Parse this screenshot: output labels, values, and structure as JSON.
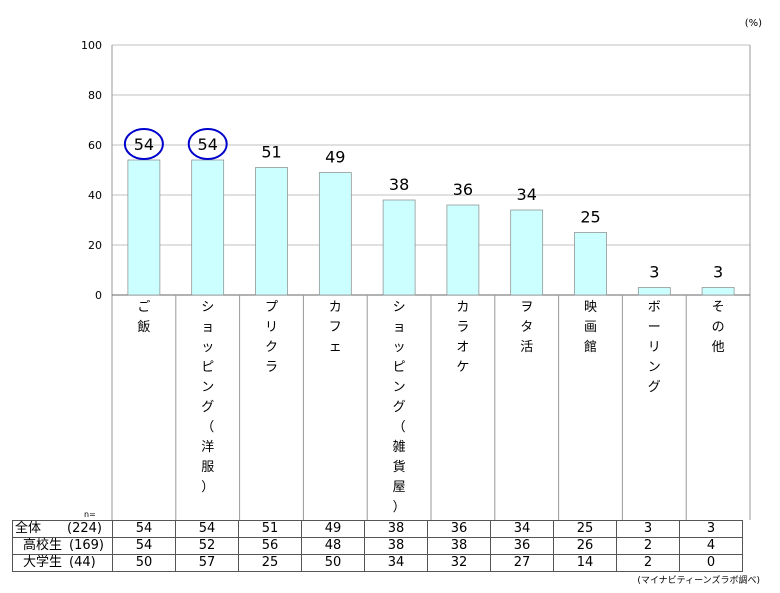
{
  "unit_label": "(%)",
  "source": "(マイナビティーンズラボ調べ)",
  "n_label": "n=",
  "chart_data": {
    "type": "bar",
    "ylim": [
      0,
      100
    ],
    "yticks": [
      "0",
      "20",
      "40",
      "60",
      "80",
      "100"
    ],
    "grid": true,
    "bar_color": "#ccffff",
    "highlight_color": "#0000cc",
    "categories": [
      "ご飯",
      "ショッピング（洋服）",
      "プリクラ",
      "カフェ",
      "ショッピング（雑貨屋）",
      "カラオケ",
      "ヲタ活",
      "映画館",
      "ボーリング",
      "その他"
    ],
    "values": [
      54,
      54,
      51,
      49,
      38,
      36,
      34,
      25,
      3,
      3
    ],
    "highlighted": [
      0,
      1
    ]
  },
  "table": {
    "rows": [
      {
        "group": "全体",
        "n": "(224)",
        "values": [
          "54",
          "54",
          "51",
          "49",
          "38",
          "36",
          "34",
          "25",
          "3",
          "3"
        ]
      },
      {
        "group": "高校生",
        "n": "(169)",
        "values": [
          "54",
          "52",
          "56",
          "48",
          "38",
          "38",
          "36",
          "26",
          "2",
          "4"
        ]
      },
      {
        "group": "大学生",
        "n": "(44)",
        "values": [
          "50",
          "57",
          "25",
          "50",
          "34",
          "32",
          "27",
          "14",
          "2",
          "0"
        ]
      }
    ]
  }
}
